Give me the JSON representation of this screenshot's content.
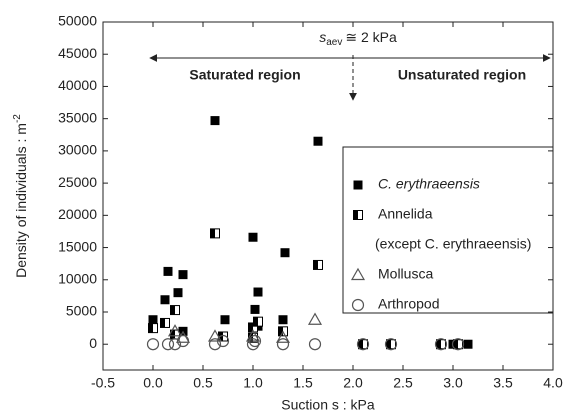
{
  "chart_data": {
    "type": "scatter",
    "annotation": {
      "symbol": "s",
      "subscript": "aev",
      "text": "≅ 2 kPa"
    },
    "region_left": "Saturated region",
    "region_right": "Unsaturated region",
    "x_label": "Suction s : kPa",
    "y_label": "Density of individuals : m",
    "y_label_sup": "-2",
    "xlim": [
      -0.5,
      4.0
    ],
    "xticks": [
      -0.5,
      {
        "value": 0,
        "label": "0.0"
      },
      0.5,
      {
        "value": 1,
        "label": "1.0"
      },
      1.5,
      {
        "value": 2,
        "label": "2.0"
      },
      2.5,
      {
        "value": 3,
        "label": "3.0"
      },
      3.5,
      {
        "value": 4,
        "label": "4.0"
      }
    ],
    "ylim": [
      -4000,
      50000
    ],
    "yticks": [
      0,
      5000,
      10000,
      15000,
      20000,
      25000,
      30000,
      35000,
      40000,
      45000,
      50000
    ],
    "series": [
      {
        "name": "C. erythraeensis",
        "marker": "square-filled",
        "color": "#000000",
        "x": [
          0,
          0.12,
          0.15,
          0.25,
          0.3,
          0.3,
          0.62,
          0.72,
          1.0,
          1.02,
          1.05,
          1.05,
          1.3,
          1.32,
          1.65,
          2.1,
          2.38,
          2.88,
          3.0,
          3.15
        ],
        "values": [
          3800,
          6900,
          11300,
          8000,
          10800,
          2000,
          34700,
          3800,
          16600,
          5400,
          8100,
          2800,
          3800,
          14200,
          31500,
          0,
          0,
          0,
          0,
          0
        ]
      },
      {
        "name": "Annelida",
        "name_note": "(except C. erythraeensis)",
        "marker": "square-half",
        "color": "#000000",
        "x": [
          0,
          0.12,
          0.22,
          0.22,
          0.62,
          0.7,
          1.0,
          1.0,
          1.05,
          1.3,
          1.65,
          2.1,
          2.38,
          2.88,
          3.05
        ],
        "values": [
          2500,
          3300,
          5300,
          1500,
          17200,
          1200,
          2600,
          1000,
          3500,
          2000,
          12300,
          0,
          0,
          0,
          0
        ]
      },
      {
        "name": "Mollusca",
        "marker": "triangle",
        "color": "#555555",
        "x": [
          0.22,
          0.3,
          0.62,
          1.0,
          1.3,
          1.62
        ],
        "values": [
          2000,
          1000,
          1200,
          1200,
          1000,
          3800
        ]
      },
      {
        "name": "Arthropod",
        "marker": "circle",
        "color": "#555555",
        "x": [
          0,
          0.15,
          0.22,
          0.3,
          0.62,
          0.7,
          1.0,
          1.02,
          1.3,
          1.62,
          2.1,
          2.38,
          2.88,
          3.05
        ],
        "values": [
          0,
          0,
          0,
          500,
          0,
          500,
          0,
          500,
          0,
          0,
          0,
          0,
          0,
          0
        ]
      }
    ]
  }
}
